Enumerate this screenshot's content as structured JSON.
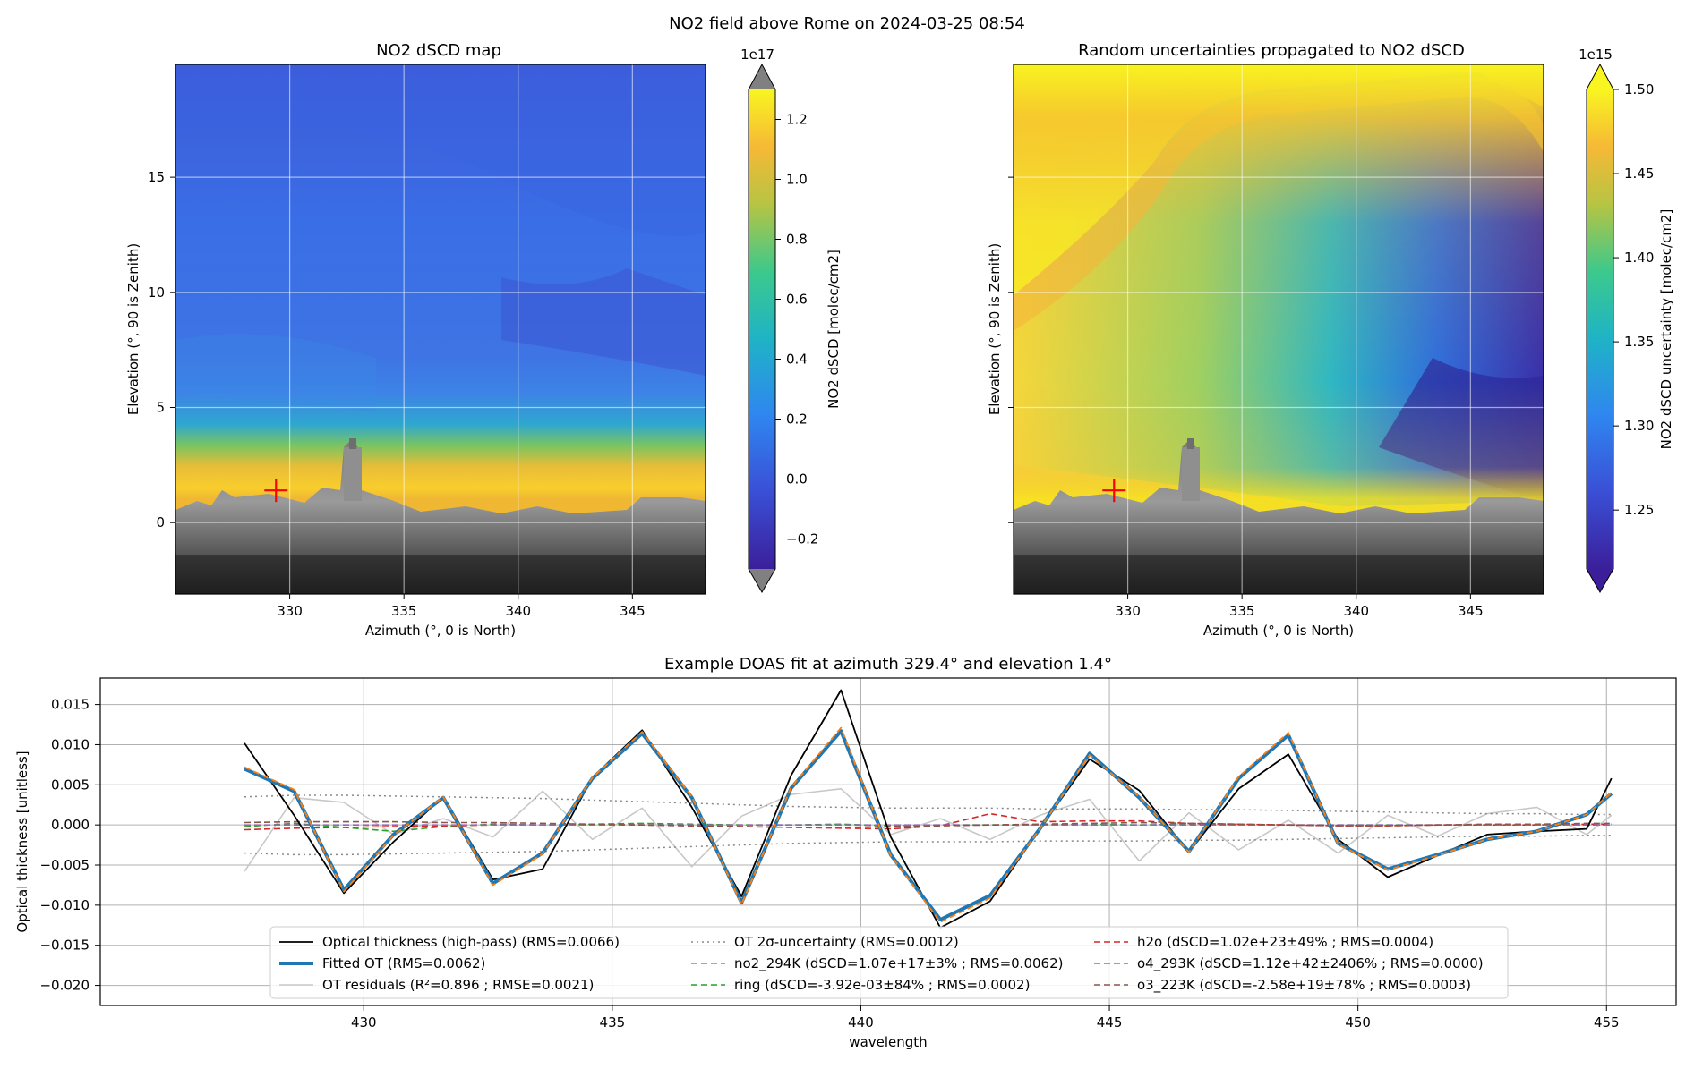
{
  "figure": {
    "suptitle": "NO2 field above Rome on 2024-03-25 08:54"
  },
  "marker": {
    "azimuth": 329.4,
    "elevation": 1.4,
    "color": "#ff0000"
  },
  "chart_data": [
    {
      "type": "heatmap",
      "title": "NO2 dSCD map",
      "xlabel": "Azimuth (°, 0 is North)",
      "ylabel": "Elevation (°, 90 is Zenith)",
      "xlim": [
        325,
        348.2
      ],
      "ylim": [
        -3.1,
        19.9
      ],
      "xticks": [
        330,
        335,
        340,
        345
      ],
      "yticks": [
        0,
        5,
        10,
        15
      ],
      "grid": true,
      "colormap": "plasma-like (purple-blue-green-yellow)",
      "colorbar": {
        "label": "NO2 dSCD [molec/cm2]",
        "offset": "1e17",
        "ticks": [
          "−0.2",
          "0.0",
          "0.2",
          "0.4",
          "0.6",
          "0.8",
          "1.0",
          "1.2"
        ],
        "vmin": -0.3,
        "vmax": 1.3,
        "extend": "both"
      },
      "field_summary": {
        "high_values_near_horizon": 1.1,
        "background": 0.1
      }
    },
    {
      "type": "heatmap",
      "title": "Random uncertainties propagated to NO2 dSCD",
      "xlabel": "Azimuth (°, 0 is North)",
      "ylabel": "Elevation (°, 90 is Zenith)",
      "xlim": [
        325,
        348.2
      ],
      "ylim": [
        -3.1,
        19.9
      ],
      "xticks": [
        330,
        335,
        340,
        345
      ],
      "yticks": [
        0,
        5,
        10,
        15
      ],
      "grid": true,
      "colorbar": {
        "label": "NO2 dSCD uncertainty [molec/cm2]",
        "offset": "1e15",
        "ticks": [
          "1.25",
          "1.30",
          "1.35",
          "1.40",
          "1.45",
          "1.50"
        ],
        "vmin": 1.215,
        "vmax": 1.5,
        "extend": "max"
      }
    },
    {
      "type": "line",
      "title": "Example DOAS fit at azimuth 329.4° and elevation 1.4°",
      "xlabel": "wavelength",
      "ylabel": "Optical thickness [unitless]",
      "xlim": [
        424.7,
        456.4
      ],
      "ylim": [
        -0.0225,
        0.0183
      ],
      "xticks": [
        430,
        435,
        440,
        445,
        450,
        455
      ],
      "yticks": [
        "0.015",
        "0.010",
        "0.005",
        "0.000",
        "−0.005",
        "−0.010",
        "−0.015",
        "−0.020"
      ],
      "grid": true,
      "legend_position": "lower-center",
      "x": [
        427.6,
        428.6,
        429.6,
        430.6,
        431.6,
        432.6,
        433.6,
        434.6,
        435.6,
        436.6,
        437.6,
        438.6,
        439.6,
        440.6,
        441.6,
        442.6,
        443.6,
        444.6,
        445.6,
        446.6,
        447.6,
        448.6,
        449.6,
        450.6,
        451.6,
        452.6,
        453.6,
        454.6,
        455.1
      ],
      "series": [
        {
          "name": "Optical thickness (high-pass) (RMS=0.0066)",
          "color": "#000000",
          "width": 1.8,
          "dash": "",
          "values": [
            0.0102,
            0.0012,
            -0.0085,
            -0.0021,
            0.0035,
            -0.0068,
            -0.0055,
            0.0059,
            0.0118,
            0.0022,
            -0.0089,
            0.0062,
            0.0168,
            -0.0015,
            -0.0128,
            -0.0095,
            -0.0005,
            0.0082,
            0.0043,
            -0.0034,
            0.0045,
            0.0088,
            -0.0018,
            -0.0065,
            -0.0038,
            -0.0012,
            -0.0008,
            -0.0005,
            0.0058
          ]
        },
        {
          "name": "Fitted OT (RMS=0.0062)",
          "color": "#1f77b4",
          "width": 4,
          "dash": "",
          "values": [
            0.007,
            0.0042,
            -0.0081,
            -0.0012,
            0.0034,
            -0.0073,
            -0.0035,
            0.0058,
            0.0114,
            0.0034,
            -0.0097,
            0.0046,
            0.0117,
            -0.0037,
            -0.0118,
            -0.0088,
            -0.0005,
            0.0089,
            0.0034,
            -0.0033,
            0.0058,
            0.0112,
            -0.0023,
            -0.0055,
            -0.0037,
            -0.0018,
            -0.0008,
            0.0013,
            0.0039
          ]
        },
        {
          "name": "OT residuals (R²=0.896 ; RMSE=0.0021)",
          "color": "#c8c8c8",
          "width": 1.6,
          "dash": "",
          "values": [
            -0.0058,
            0.0034,
            0.0028,
            -0.0012,
            0.0008,
            -0.0015,
            0.0042,
            -0.0018,
            0.0021,
            -0.0052,
            0.0011,
            0.0038,
            0.0045,
            -0.0012,
            0.0008,
            -0.0018,
            0.0012,
            0.0032,
            -0.0045,
            0.0015,
            -0.0031,
            0.0006,
            -0.0035,
            0.0012,
            -0.0014,
            0.0014,
            0.0022,
            -0.0012,
            0.0012
          ]
        },
        {
          "name": "OT 2σ-uncertainty (RMS=0.0012)",
          "color": "#888888",
          "width": 1.5,
          "dash": "2,4",
          "values": [
            0.0035,
            0.0037,
            0.0037,
            0.0036,
            0.0035,
            0.0034,
            0.0033,
            0.0031,
            0.0029,
            0.0027,
            0.0025,
            0.0023,
            0.0022,
            0.0021,
            0.0021,
            0.0021,
            0.002,
            0.002,
            0.002,
            0.0019,
            0.0019,
            0.0018,
            0.0017,
            0.0016,
            0.0015,
            0.0014,
            0.0014,
            0.0013,
            0.0013
          ]
        },
        {
          "name": "no2_294K (dSCD=1.07e+17±3% ; RMS=0.0062)",
          "color": "#ff7f0e",
          "width": 1.8,
          "dash": "7,4",
          "values": [
            0.0072,
            0.0044,
            -0.0083,
            -0.0013,
            0.0035,
            -0.0075,
            -0.0036,
            0.0059,
            0.0116,
            0.0035,
            -0.0099,
            0.0047,
            0.0121,
            -0.0038,
            -0.0121,
            -0.0091,
            -0.0005,
            0.0087,
            0.0035,
            -0.0034,
            0.006,
            0.0115,
            -0.0024,
            -0.0056,
            -0.0038,
            -0.0018,
            -0.0008,
            0.0013,
            0.004
          ]
        },
        {
          "name": "ring (dSCD=-3.92e-03±84% ; RMS=0.0002)",
          "color": "#2ca02c",
          "width": 1.6,
          "dash": "7,4",
          "values": [
            -0.0002,
            0.0002,
            -0.0003,
            -0.0008,
            -0.0002,
            0.0001,
            0,
            0.0001,
            0.0002,
            0.0001,
            0,
            0,
            0.0001,
            -0.0001,
            0,
            0,
            0,
            0.0001,
            0,
            0.0001,
            0,
            0,
            0,
            0,
            0,
            0,
            0,
            0,
            0
          ]
        },
        {
          "name": "h2o (dSCD=1.02e+23±49% ; RMS=0.0004)",
          "color": "#d62728",
          "width": 1.6,
          "dash": "7,4",
          "values": [
            -0.0006,
            -0.0004,
            -0.0003,
            -0.0002,
            -0.0001,
            0,
            0,
            0,
            0,
            -0.0001,
            -0.0002,
            -0.0003,
            -0.0004,
            -0.0005,
            -0.0001,
            0.0014,
            0.0004,
            0.0005,
            0.0005,
            0.0002,
            0.0001,
            0,
            -0.0001,
            -0.0001,
            0,
            0,
            0,
            0.0001,
            0.0001
          ]
        },
        {
          "name": "o4_293K (dSCD=1.12e+42±2406% ; RMS=0.0000)",
          "color": "#9467bd",
          "width": 1.6,
          "dash": "7,4",
          "values": [
            0,
            0,
            0,
            0,
            0,
            0,
            0,
            0,
            0,
            0,
            0,
            0,
            0,
            0,
            0,
            0,
            0,
            0,
            0,
            0,
            0,
            0,
            0,
            0,
            0,
            0,
            0,
            0,
            0
          ]
        },
        {
          "name": "o3_223K (dSCD=-2.58e+19±78% ; RMS=0.0003)",
          "color": "#8c564b",
          "width": 1.6,
          "dash": "7,4",
          "values": [
            0.0003,
            0.0004,
            0.0004,
            0.0004,
            0.0003,
            0.0003,
            0.0002,
            0.0001,
            0,
            -0.0001,
            -0.0002,
            -0.0003,
            -0.0003,
            -0.0002,
            -0.0001,
            0,
            0.0001,
            0.0002,
            0.0003,
            0.0002,
            0.0001,
            0,
            -0.0001,
            -0.0001,
            0,
            0.0001,
            0.0001,
            0.0002,
            0.0002
          ]
        }
      ]
    }
  ]
}
